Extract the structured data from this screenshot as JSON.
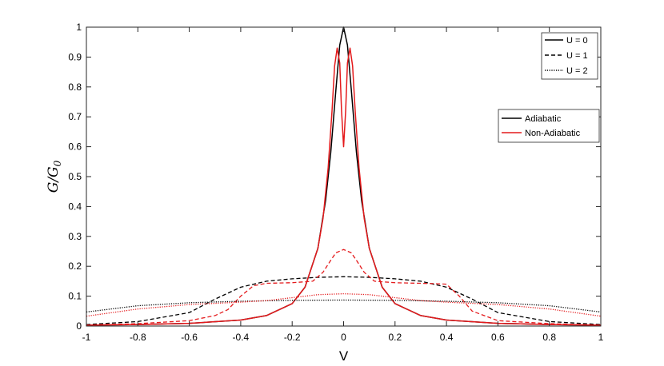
{
  "chart_data": {
    "type": "line",
    "title": "",
    "xlabel": "V",
    "ylabel": "G/G",
    "ylabel_sub": "0",
    "xlim": [
      -1,
      1
    ],
    "ylim": [
      0,
      1
    ],
    "xticks": [
      -1,
      -0.8,
      -0.6,
      -0.4,
      -0.2,
      0,
      0.2,
      0.4,
      0.6,
      0.8,
      1
    ],
    "xtick_labels": [
      "-1",
      "-0.8",
      "-0.6",
      "-0.4",
      "-0.2",
      "0",
      "0.2",
      "0.4",
      "0.6",
      "0.8",
      "1"
    ],
    "yticks": [
      0,
      0.1,
      0.2,
      0.3,
      0.4,
      0.5,
      0.6,
      0.7,
      0.8,
      0.9,
      1
    ],
    "ytick_labels": [
      "0",
      "0.1",
      "0.2",
      "0.3",
      "0.4",
      "0.5",
      "0.6",
      "0.7",
      "0.8",
      "0.9",
      "1"
    ],
    "grid": false,
    "legend_styles": {
      "placement": "top-right",
      "entries": [
        {
          "label": "U = 0",
          "dash": "solid"
        },
        {
          "label": "U = 1",
          "dash": "dashed"
        },
        {
          "label": "U = 2",
          "dash": "dotted"
        }
      ]
    },
    "legend_colors": {
      "placement": "right",
      "entries": [
        {
          "label": "Adiabatic",
          "color": "#000000"
        },
        {
          "label": "Non-Adiabatic",
          "color": "#e41a1c"
        }
      ]
    },
    "series": [
      {
        "regime": "Adiabatic",
        "U": "U = 0",
        "color": "#000000",
        "dash": "solid",
        "x": [
          -1,
          -0.8,
          -0.6,
          -0.4,
          -0.3,
          -0.2,
          -0.15,
          -0.1,
          -0.07,
          -0.05,
          -0.03,
          -0.015,
          0,
          0.015,
          0.03,
          0.05,
          0.07,
          0.1,
          0.15,
          0.2,
          0.3,
          0.4,
          0.6,
          0.8,
          1
        ],
        "y": [
          0.003,
          0.005,
          0.009,
          0.02,
          0.035,
          0.075,
          0.13,
          0.26,
          0.42,
          0.58,
          0.79,
          0.94,
          1.0,
          0.94,
          0.79,
          0.58,
          0.42,
          0.26,
          0.13,
          0.075,
          0.035,
          0.02,
          0.009,
          0.005,
          0.003
        ]
      },
      {
        "regime": "Non-Adiabatic",
        "U": "U = 0",
        "color": "#e41a1c",
        "dash": "solid",
        "x": [
          -1,
          -0.8,
          -0.6,
          -0.4,
          -0.3,
          -0.2,
          -0.15,
          -0.1,
          -0.08,
          -0.06,
          -0.045,
          -0.035,
          -0.025,
          -0.015,
          -0.008,
          0,
          0.008,
          0.015,
          0.025,
          0.035,
          0.045,
          0.06,
          0.08,
          0.1,
          0.15,
          0.2,
          0.3,
          0.4,
          0.6,
          0.8,
          1
        ],
        "y": [
          0.003,
          0.005,
          0.009,
          0.02,
          0.035,
          0.075,
          0.13,
          0.26,
          0.36,
          0.53,
          0.72,
          0.87,
          0.93,
          0.88,
          0.72,
          0.6,
          0.72,
          0.88,
          0.93,
          0.87,
          0.72,
          0.53,
          0.36,
          0.26,
          0.13,
          0.075,
          0.035,
          0.02,
          0.009,
          0.005,
          0.003
        ]
      },
      {
        "regime": "Adiabatic",
        "U": "U = 1",
        "color": "#000000",
        "dash": "dashed",
        "x": [
          -1,
          -0.8,
          -0.6,
          -0.5,
          -0.4,
          -0.3,
          -0.2,
          -0.1,
          0,
          0.1,
          0.2,
          0.3,
          0.4,
          0.5,
          0.6,
          0.8,
          1
        ],
        "y": [
          0.005,
          0.015,
          0.045,
          0.09,
          0.13,
          0.15,
          0.158,
          0.163,
          0.165,
          0.163,
          0.158,
          0.15,
          0.13,
          0.09,
          0.045,
          0.015,
          0.005
        ]
      },
      {
        "regime": "Non-Adiabatic",
        "U": "U = 1",
        "color": "#e41a1c",
        "dash": "dashed",
        "x": [
          -1,
          -0.8,
          -0.6,
          -0.5,
          -0.45,
          -0.4,
          -0.35,
          -0.3,
          -0.2,
          -0.12,
          -0.08,
          -0.05,
          -0.03,
          0,
          0.03,
          0.05,
          0.08,
          0.12,
          0.2,
          0.3,
          0.35,
          0.4,
          0.45,
          0.5,
          0.6,
          0.8,
          1
        ],
        "y": [
          0.003,
          0.008,
          0.018,
          0.035,
          0.055,
          0.1,
          0.135,
          0.143,
          0.145,
          0.15,
          0.18,
          0.22,
          0.245,
          0.256,
          0.245,
          0.22,
          0.18,
          0.15,
          0.145,
          0.143,
          0.142,
          0.14,
          0.1,
          0.05,
          0.018,
          0.008,
          0.003
        ]
      },
      {
        "regime": "Adiabatic",
        "U": "U = 2",
        "color": "#000000",
        "dash": "dotted",
        "x": [
          -1,
          -0.8,
          -0.6,
          -0.4,
          -0.2,
          0,
          0.2,
          0.4,
          0.6,
          0.8,
          1
        ],
        "y": [
          0.047,
          0.068,
          0.078,
          0.083,
          0.086,
          0.087,
          0.086,
          0.083,
          0.078,
          0.068,
          0.047
        ]
      },
      {
        "regime": "Non-Adiabatic",
        "U": "U = 2",
        "color": "#e41a1c",
        "dash": "dotted",
        "x": [
          -1,
          -0.8,
          -0.6,
          -0.4,
          -0.3,
          -0.2,
          -0.1,
          0,
          0.1,
          0.2,
          0.3,
          0.4,
          0.6,
          0.8,
          1
        ],
        "y": [
          0.033,
          0.057,
          0.072,
          0.08,
          0.085,
          0.095,
          0.105,
          0.108,
          0.105,
          0.095,
          0.085,
          0.08,
          0.072,
          0.057,
          0.033
        ]
      }
    ]
  }
}
